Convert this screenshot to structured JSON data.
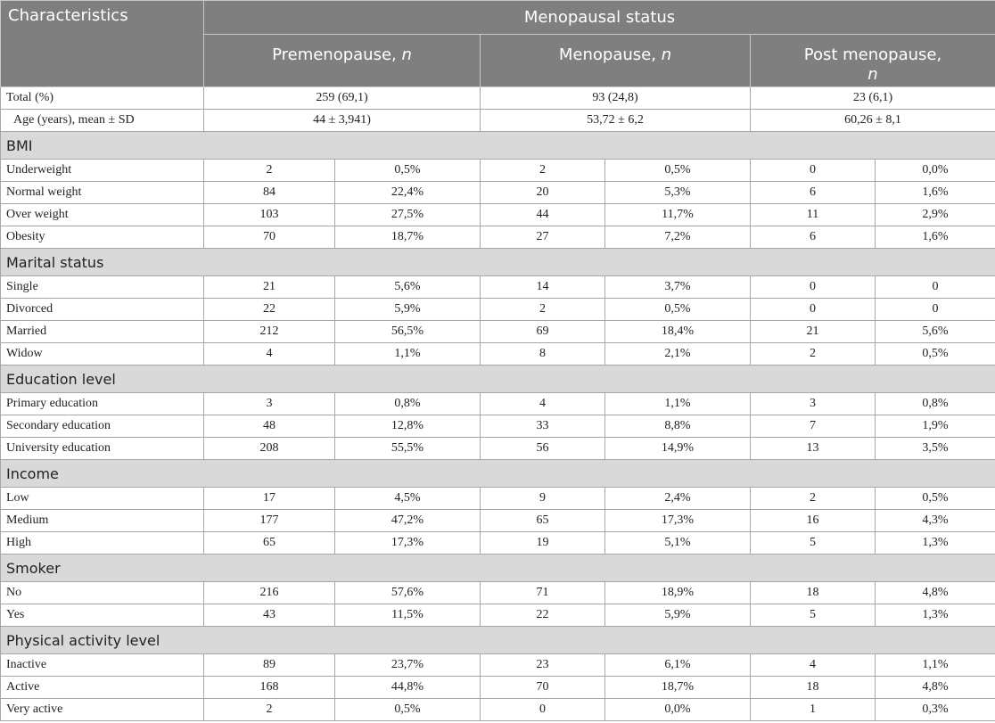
{
  "header": {
    "characteristics": "Characteristics",
    "group": "Menopausal status",
    "columns": [
      {
        "name": "Premenopause,",
        "n": "n"
      },
      {
        "name": "Menopause,",
        "n": "n"
      },
      {
        "name": "Post menopause,",
        "n": "n"
      }
    ]
  },
  "summary": [
    {
      "label": "Total (%)",
      "values": [
        "259 (69,1)",
        "93 (24,8)",
        "23 (6,1)"
      ]
    },
    {
      "label": "Age (years), mean ± SD",
      "values": [
        "44 ± 3,941)",
        "53,72 ± 6,2",
        "60,26 ± 8,1"
      ]
    }
  ],
  "sections": [
    {
      "title": "BMI",
      "rows": [
        {
          "label": "Underweight",
          "values": [
            "2",
            "0,5%",
            "2",
            "0,5%",
            "0",
            "0,0%"
          ]
        },
        {
          "label": "Normal weight",
          "values": [
            "84",
            "22,4%",
            "20",
            "5,3%",
            "6",
            "1,6%"
          ]
        },
        {
          "label": "Over weight",
          "values": [
            "103",
            "27,5%",
            "44",
            "11,7%",
            "11",
            "2,9%"
          ]
        },
        {
          "label": "Obesity",
          "values": [
            "70",
            "18,7%",
            "27",
            "7,2%",
            "6",
            "1,6%"
          ]
        }
      ]
    },
    {
      "title": "Marital status",
      "rows": [
        {
          "label": "Single",
          "values": [
            "21",
            "5,6%",
            "14",
            "3,7%",
            "0",
            "0"
          ]
        },
        {
          "label": "Divorced",
          "values": [
            "22",
            "5,9%",
            "2",
            "0,5%",
            "0",
            "0"
          ]
        },
        {
          "label": "Married",
          "values": [
            "212",
            "56,5%",
            "69",
            "18,4%",
            "21",
            "5,6%"
          ]
        },
        {
          "label": "Widow",
          "values": [
            "4",
            "1,1%",
            "8",
            "2,1%",
            "2",
            "0,5%"
          ]
        }
      ]
    },
    {
      "title": "Education level",
      "rows": [
        {
          "label": "Primary education",
          "values": [
            "3",
            "0,8%",
            "4",
            "1,1%",
            "3",
            "0,8%"
          ]
        },
        {
          "label": "Secondary education",
          "values": [
            "48",
            "12,8%",
            "33",
            "8,8%",
            "7",
            "1,9%"
          ]
        },
        {
          "label": "University education",
          "values": [
            "208",
            "55,5%",
            "56",
            "14,9%",
            "13",
            "3,5%"
          ]
        }
      ]
    },
    {
      "title": "Income",
      "rows": [
        {
          "label": "Low",
          "values": [
            "17",
            "4,5%",
            "9",
            "2,4%",
            "2",
            "0,5%"
          ]
        },
        {
          "label": "Medium",
          "values": [
            "177",
            "47,2%",
            "65",
            "17,3%",
            "16",
            "4,3%"
          ]
        },
        {
          "label": "High",
          "values": [
            "65",
            "17,3%",
            "19",
            "5,1%",
            "5",
            "1,3%"
          ]
        }
      ]
    },
    {
      "title": "Smoker",
      "rows": [
        {
          "label": "No",
          "values": [
            "216",
            "57,6%",
            "71",
            "18,9%",
            "18",
            "4,8%"
          ]
        },
        {
          "label": "Yes",
          "values": [
            "43",
            "11,5%",
            "22",
            "5,9%",
            "5",
            "1,3%"
          ]
        }
      ]
    },
    {
      "title": "Physical activity level",
      "rows": [
        {
          "label": "Inactive",
          "values": [
            "89",
            "23,7%",
            "23",
            "6,1%",
            "4",
            "1,1%"
          ]
        },
        {
          "label": "Active",
          "values": [
            "168",
            "44,8%",
            "70",
            "18,7%",
            "18",
            "4,8%"
          ]
        },
        {
          "label": "Very active",
          "values": [
            "2",
            "0,5%",
            "0",
            "0,0%",
            "1",
            "0,3%"
          ]
        }
      ]
    }
  ]
}
